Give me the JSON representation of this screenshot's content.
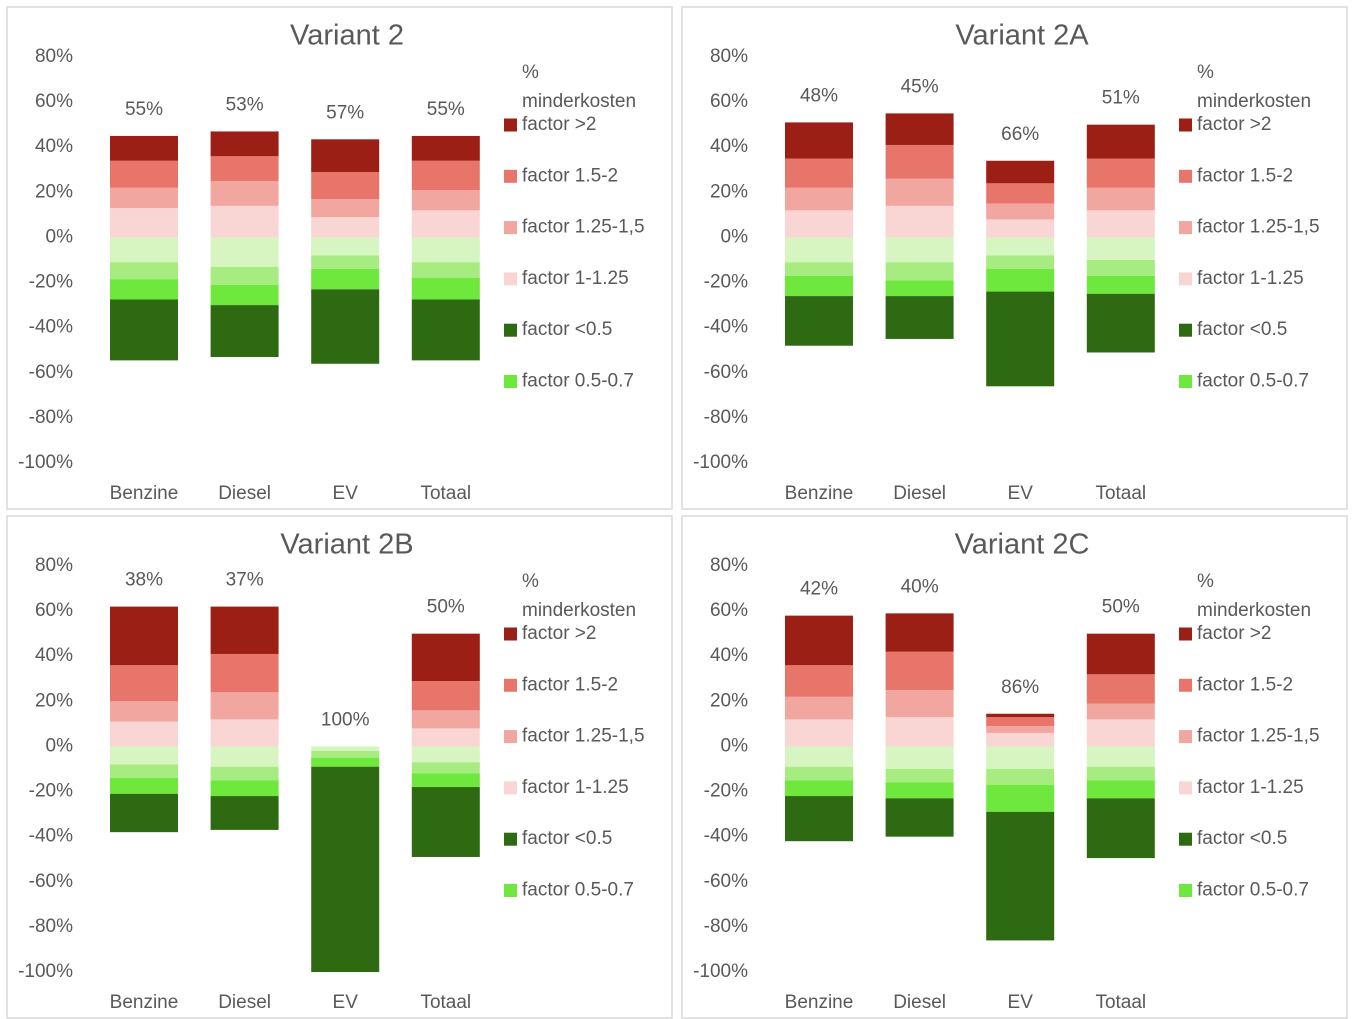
{
  "chart_data": [
    {
      "type": "bar",
      "stacked": true,
      "title": "Variant 2",
      "legend_title": "% minderkosten",
      "categories": [
        "Benzine",
        "Diesel",
        "EV",
        "Totaal"
      ],
      "ylim": [
        -100,
        80
      ],
      "yticks": [
        {
          "value": 80,
          "label": "80%"
        },
        {
          "value": 60,
          "label": "60%"
        },
        {
          "value": 40,
          "label": "40%"
        },
        {
          "value": 20,
          "label": "20%"
        },
        {
          "value": 0,
          "label": "0%"
        },
        {
          "value": -20,
          "label": "-20%"
        },
        {
          "value": -40,
          "label": "-40%"
        },
        {
          "value": -60,
          "label": "-60%"
        },
        {
          "value": -80,
          "label": "-80%"
        },
        {
          "value": -100,
          "label": "-100%"
        }
      ],
      "series": [
        {
          "name": "factor >2",
          "color": "#9c1f15",
          "values": [
            11,
            11,
            14.5,
            11
          ]
        },
        {
          "name": "factor 1.5-2",
          "color": "#e8756a",
          "values": [
            12,
            11,
            12,
            13
          ]
        },
        {
          "name": "factor 1.25-1,5",
          "color": "#f2a6a0",
          "values": [
            9,
            11,
            8,
            9
          ]
        },
        {
          "name": "factor 1-1.25",
          "color": "#f9d5d3",
          "values": [
            13,
            14,
            9,
            12
          ]
        },
        {
          "name": "factor <0.5",
          "color": "#2d6a12",
          "values": [
            -27,
            -23,
            -33,
            -27
          ]
        },
        {
          "name": "factor 0.5-0.7",
          "color": "#6ee83c",
          "values": [
            -9,
            -9,
            -9,
            -9.5
          ]
        },
        {
          "color": "#d6f5c0",
          "values": [
            -11,
            -13,
            -8,
            -11
          ]
        },
        {
          "color": "#a6ec80",
          "values": [
            -7.5,
            -8,
            -6,
            -7
          ]
        }
      ],
      "labels": {
        "values": [
          55,
          53,
          57,
          55
        ],
        "value_labels": [
          "55%",
          "53%",
          "57%",
          "55%"
        ]
      }
    },
    {
      "type": "bar",
      "stacked": true,
      "title": "Variant 2A",
      "legend_title": "% minderkosten",
      "categories": [
        "Benzine",
        "Diesel",
        "EV",
        "Totaal"
      ],
      "ylim": [
        -100,
        80
      ],
      "yticks": [
        {
          "value": 80,
          "label": "80%"
        },
        {
          "value": 60,
          "label": "60%"
        },
        {
          "value": 40,
          "label": "40%"
        },
        {
          "value": 20,
          "label": "20%"
        },
        {
          "value": 0,
          "label": "0%"
        },
        {
          "value": -20,
          "label": "-20%"
        },
        {
          "value": -40,
          "label": "-40%"
        },
        {
          "value": -60,
          "label": "-60%"
        },
        {
          "value": -80,
          "label": "-80%"
        },
        {
          "value": -100,
          "label": "-100%"
        }
      ],
      "series": [
        {
          "name": "factor >2",
          "color": "#9c1f15",
          "values": [
            16,
            14,
            10,
            15
          ]
        },
        {
          "name": "factor 1.5-2",
          "color": "#e8756a",
          "values": [
            13,
            15,
            9,
            13
          ]
        },
        {
          "name": "factor 1.25-1,5",
          "color": "#f2a6a0",
          "values": [
            10,
            12,
            7,
            10
          ]
        },
        {
          "name": "factor 1-1.25",
          "color": "#f9d5d3",
          "values": [
            12,
            14,
            8,
            12
          ]
        },
        {
          "name": "factor <0.5",
          "color": "#2d6a12",
          "values": [
            -22,
            -19,
            -42,
            -26
          ]
        },
        {
          "name": "factor 0.5-0.7",
          "color": "#6ee83c",
          "values": [
            -9,
            -7,
            -10,
            -8
          ]
        },
        {
          "color": "#d6f5c0",
          "values": [
            -11,
            -11,
            -8,
            -10
          ]
        },
        {
          "color": "#a6ec80",
          "values": [
            -6,
            -8,
            -6,
            -7
          ]
        }
      ],
      "labels": {
        "values": [
          48,
          45,
          66,
          51
        ],
        "value_labels": [
          "48%",
          "45%",
          "66%",
          "51%"
        ]
      }
    },
    {
      "type": "bar",
      "stacked": true,
      "title": "Variant 2B",
      "legend_title": "% minderkosten",
      "categories": [
        "Benzine",
        "Diesel",
        "EV",
        "Totaal"
      ],
      "ylim": [
        -100,
        80
      ],
      "yticks": [
        {
          "value": 80,
          "label": "80%"
        },
        {
          "value": 60,
          "label": "60%"
        },
        {
          "value": 40,
          "label": "40%"
        },
        {
          "value": 20,
          "label": "20%"
        },
        {
          "value": 0,
          "label": "0%"
        },
        {
          "value": -20,
          "label": "-20%"
        },
        {
          "value": -40,
          "label": "-40%"
        },
        {
          "value": -60,
          "label": "-60%"
        },
        {
          "value": -80,
          "label": "-80%"
        },
        {
          "value": -100,
          "label": "-100%"
        }
      ],
      "series": [
        {
          "name": "factor >2",
          "color": "#9c1f15",
          "values": [
            26,
            21,
            0,
            21
          ]
        },
        {
          "name": "factor 1.5-2",
          "color": "#e8756a",
          "values": [
            16,
            17,
            0,
            13
          ]
        },
        {
          "name": "factor 1.25-1,5",
          "color": "#f2a6a0",
          "values": [
            9,
            12,
            0,
            8
          ]
        },
        {
          "name": "factor 1-1.25",
          "color": "#f9d5d3",
          "values": [
            11,
            12,
            0,
            8
          ]
        },
        {
          "name": "factor <0.5",
          "color": "#2d6a12",
          "values": [
            -17,
            -15,
            -91,
            -31
          ]
        },
        {
          "name": "factor 0.5-0.7",
          "color": "#6ee83c",
          "values": [
            -7,
            -7,
            -4,
            -6
          ]
        },
        {
          "color": "#d6f5c0",
          "values": [
            -8,
            -9,
            -2,
            -7
          ]
        },
        {
          "color": "#a6ec80",
          "values": [
            -6,
            -6,
            -3,
            -5
          ]
        }
      ],
      "labels": {
        "values": [
          38,
          37,
          100,
          50
        ],
        "value_labels": [
          "38%",
          "37%",
          "100%",
          "50%"
        ]
      }
    },
    {
      "type": "bar",
      "stacked": true,
      "title": "Variant 2C",
      "legend_title": "% minderkosten",
      "categories": [
        "Benzine",
        "Diesel",
        "EV",
        "Totaal"
      ],
      "ylim": [
        -100,
        80
      ],
      "yticks": [
        {
          "value": 80,
          "label": "80%"
        },
        {
          "value": 60,
          "label": "60%"
        },
        {
          "value": 40,
          "label": "40%"
        },
        {
          "value": 20,
          "label": "20%"
        },
        {
          "value": 0,
          "label": "0%"
        },
        {
          "value": -20,
          "label": "-20%"
        },
        {
          "value": -40,
          "label": "-40%"
        },
        {
          "value": -60,
          "label": "-60%"
        },
        {
          "value": -80,
          "label": "-80%"
        },
        {
          "value": -100,
          "label": "-100%"
        }
      ],
      "series": [
        {
          "name": "factor >2",
          "color": "#9c1f15",
          "values": [
            22,
            17,
            1.5,
            18
          ]
        },
        {
          "name": "factor 1.5-2",
          "color": "#e8756a",
          "values": [
            14,
            17,
            4,
            13
          ]
        },
        {
          "name": "factor 1.25-1,5",
          "color": "#f2a6a0",
          "values": [
            10,
            12,
            3,
            7
          ]
        },
        {
          "name": "factor 1-1.25",
          "color": "#f9d5d3",
          "values": [
            12,
            13,
            6,
            12
          ]
        },
        {
          "name": "factor <0.5",
          "color": "#2d6a12",
          "values": [
            -20,
            -17,
            -57,
            -26.5
          ]
        },
        {
          "name": "factor 0.5-0.7",
          "color": "#6ee83c",
          "values": [
            -7,
            -7,
            -12,
            -8
          ]
        },
        {
          "color": "#d6f5c0",
          "values": [
            -9,
            -10,
            -10,
            -9
          ]
        },
        {
          "color": "#a6ec80",
          "values": [
            -6,
            -6,
            -7,
            -6
          ]
        }
      ],
      "labels": {
        "values": [
          42,
          40,
          86,
          50
        ],
        "value_labels": [
          "42%",
          "40%",
          "86%",
          "50%"
        ]
      }
    }
  ]
}
